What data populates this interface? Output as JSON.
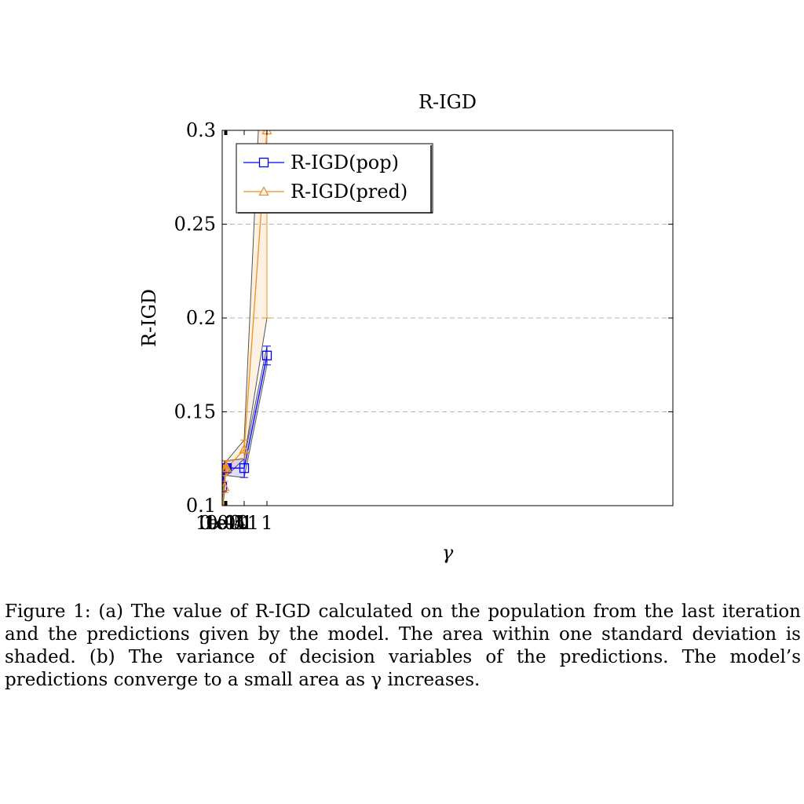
{
  "caption": "Figure 1: (a) The value of R-IGD calculated on the population from the last iteration and the predictions given by the model. The area within one standard deviation is shaded. (b) The variance of decision variables of the predictions. The model’s predictions converge to a small area as γ increases.",
  "chart_data": {
    "type": "line",
    "title": "R-IGD",
    "xlabel": "γ",
    "ylabel": "R-IGD",
    "ylim": [
      0.1,
      0.3
    ],
    "yticks": [
      "0.1",
      "0.15",
      "0.2",
      "0.25",
      "0.3"
    ],
    "grid": "horizontal-dashed",
    "legend_position": "top-left",
    "x": [
      1e-10,
      1e-05,
      0.0001,
      0.001,
      0.01,
      0.1,
      1
    ],
    "xtick_labels": [
      "1e-10",
      "1e-5",
      "1e-4",
      "0.001",
      "0.01",
      "0.1",
      "1"
    ],
    "series": [
      {
        "name": "R-IGD(pop)",
        "color": "#0000ff",
        "marker": "square",
        "values": [
          0.11,
          0.12,
          0.12,
          0.12,
          0.12,
          0.12,
          0.18
        ],
        "std": [
          0.003,
          0.004,
          0.004,
          0.004,
          0.004,
          0.005,
          0.005
        ]
      },
      {
        "name": "R-IGD(pred)",
        "color": "#f28e1c",
        "marker": "triangle",
        "values": [
          0.1,
          0.11,
          0.12,
          0.12,
          0.12,
          0.13,
          0.3
        ],
        "std": [
          0.002,
          0.003,
          0.004,
          0.004,
          0.004,
          0.005,
          0.1
        ]
      }
    ]
  }
}
